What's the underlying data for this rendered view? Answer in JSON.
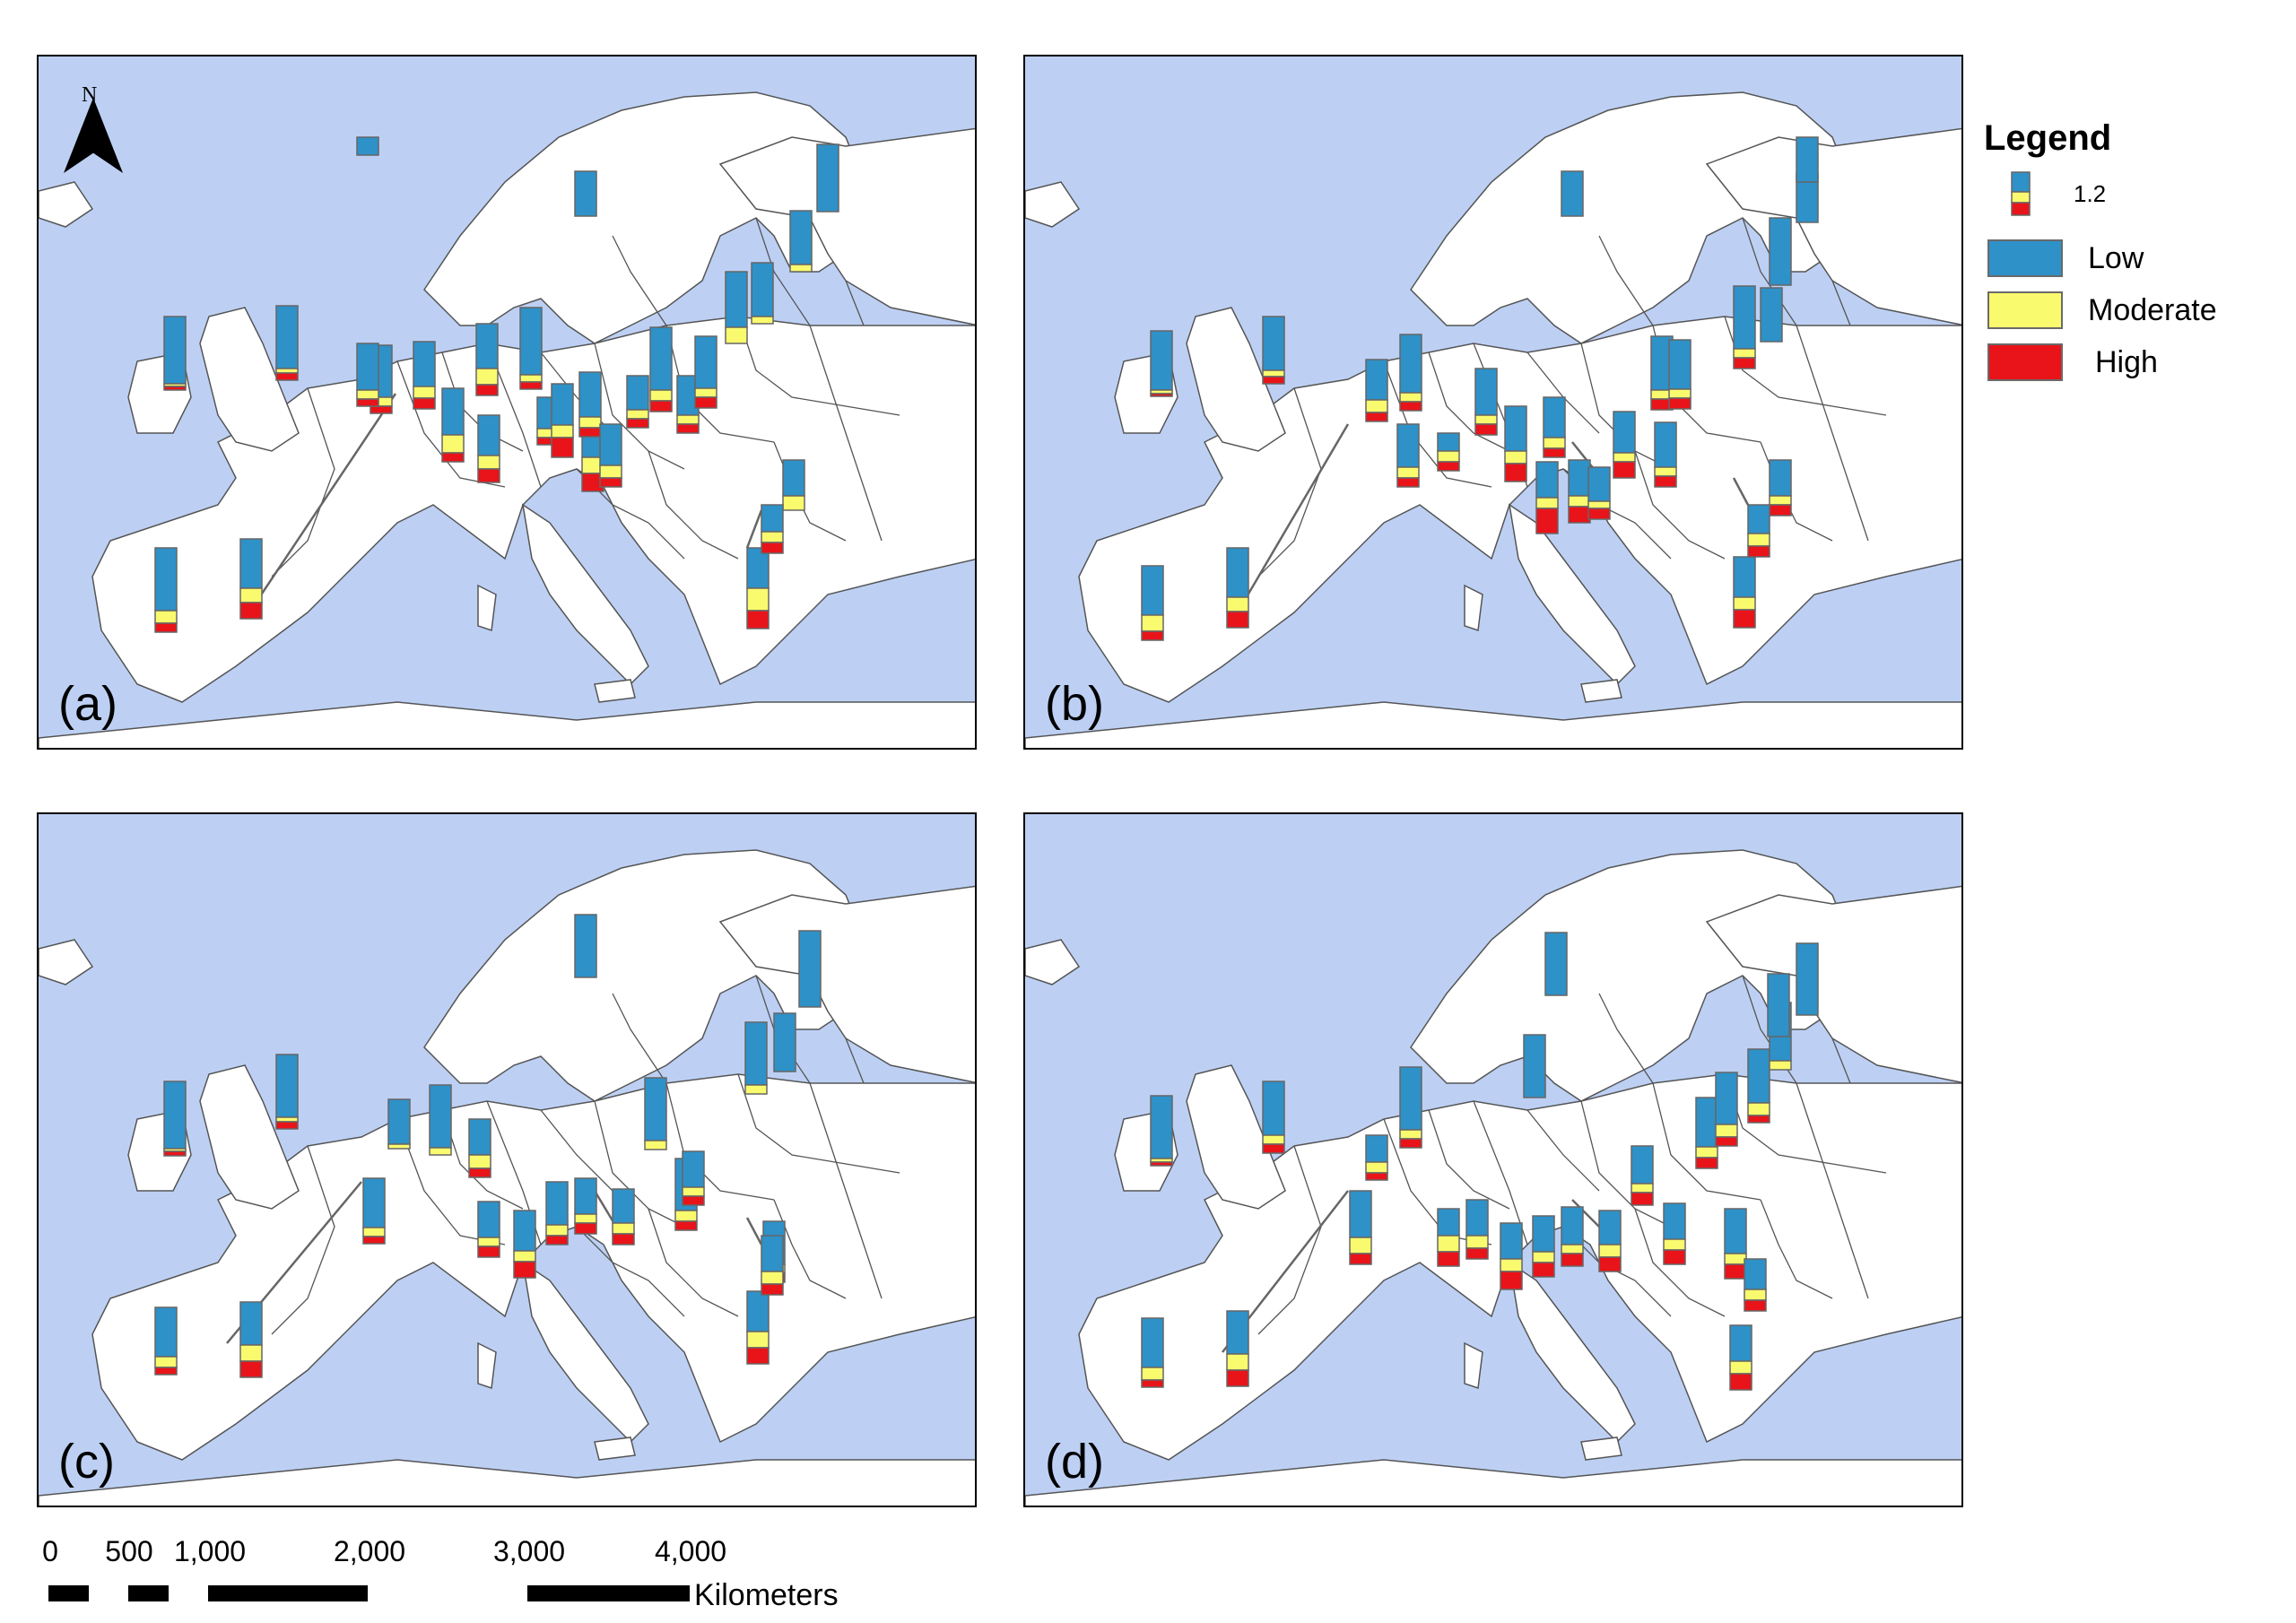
{
  "panels": [
    {
      "id": "a",
      "label": "(a)"
    },
    {
      "id": "b",
      "label": "(b)"
    },
    {
      "id": "c",
      "label": "(c)"
    },
    {
      "id": "d",
      "label": "(d)"
    }
  ],
  "north_arrow": {
    "letter": "N"
  },
  "legend": {
    "title": "Legend",
    "sample_value": "1.2",
    "items": [
      {
        "label": "Low",
        "color": "#2e91c8"
      },
      {
        "label": "Moderate",
        "color": "#fafa6e"
      },
      {
        "label": "High",
        "color": "#e8141a"
      }
    ]
  },
  "scale_bar": {
    "ticks": [
      "0",
      "500",
      "1,000",
      "2,000",
      "3,000",
      "4,000"
    ],
    "unit": "Kilometers"
  },
  "colors": {
    "sea": "#bdd0f4",
    "land": "#ffffff",
    "border": "#555555",
    "low": "#2e91c8",
    "moderate": "#fafa6e",
    "high": "#e8141a"
  }
}
